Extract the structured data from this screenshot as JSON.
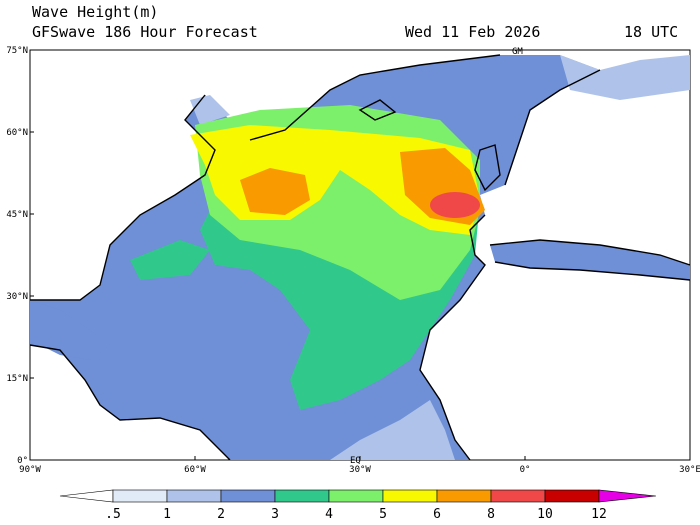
{
  "header": {
    "title": "Wave Height(m)",
    "subtitle": "GFSwave 186 Hour Forecast",
    "date": "Wed 11 Feb 2026",
    "time": "18 UTC"
  },
  "map": {
    "lat_labels": [
      "75°N",
      "60°N",
      "45°N",
      "30°N",
      "15°N",
      "0°"
    ],
    "lon_labels": [
      "90°W",
      "60°W",
      "30°W",
      "0°",
      "30°E"
    ],
    "annotations": [
      "GM",
      "EQ"
    ]
  },
  "colorbar": {
    "levels": [
      {
        "value": 0.5,
        "label": ".5"
      },
      1,
      2,
      3,
      4,
      5,
      6,
      8,
      10,
      12
    ],
    "colors": [
      "#ffffff",
      "#e1ebf8",
      "#afc3ea",
      "#6f8fd6",
      "#31c88c",
      "#7cf06a",
      "#f8f800",
      "#f89a00",
      "#f04848",
      "#c80000",
      "#e600e6"
    ]
  }
}
